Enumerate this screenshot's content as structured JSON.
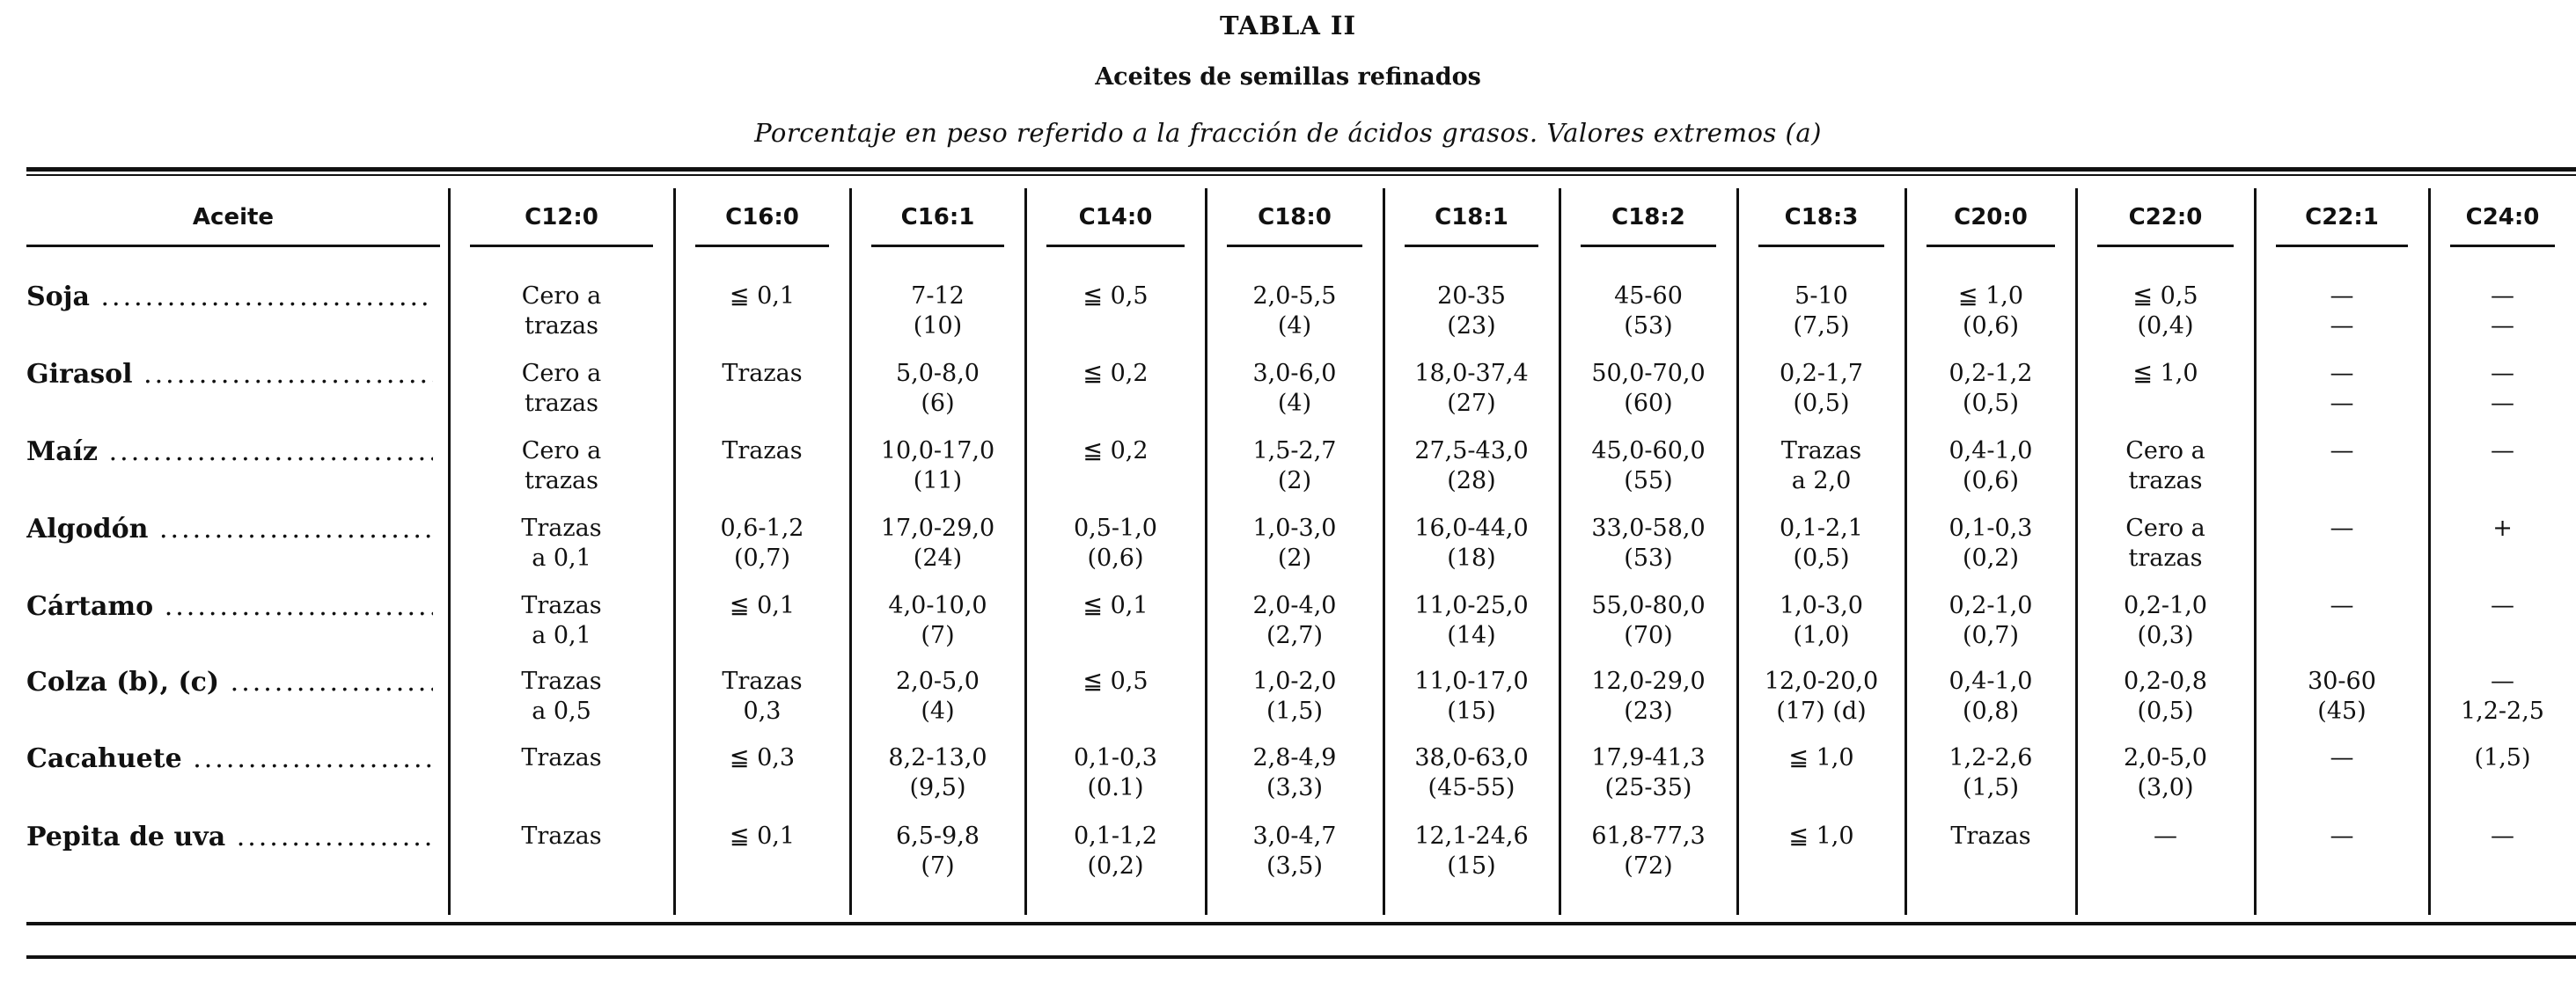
{
  "title": "TABLA II",
  "subtitle": "Aceites de semillas refinados",
  "caption": "Porcentaje en peso referido a la fracción de ácidos grasos. Valores extremos (a)",
  "columns": [
    "Aceite",
    "C12:0",
    "C16:0",
    "C16:1",
    "C14:0",
    "C18:0",
    "C18:1",
    "C18:2",
    "C18:3",
    "C20:0",
    "C22:0",
    "C22:1",
    "C24:0"
  ],
  "rows": [
    {
      "name": "Soja",
      "cells": [
        [
          "Cero a",
          "trazas"
        ],
        [
          "≦ 0,1",
          ""
        ],
        [
          "7-12",
          "(10)"
        ],
        [
          "≦ 0,5",
          ""
        ],
        [
          "2,0-5,5",
          "(4)"
        ],
        [
          "20-35",
          "(23)"
        ],
        [
          "45-60",
          "(53)"
        ],
        [
          "5-10",
          "(7,5)"
        ],
        [
          "≦ 1,0",
          "(0,6)"
        ],
        [
          "≦ 0,5",
          "(0,4)"
        ],
        [
          "—",
          "—"
        ],
        [
          "—",
          "—"
        ]
      ]
    },
    {
      "name": "Girasol",
      "cells": [
        [
          "Cero a",
          "trazas"
        ],
        [
          "Trazas",
          ""
        ],
        [
          "5,0-8,0",
          "(6)"
        ],
        [
          "≦ 0,2",
          ""
        ],
        [
          "3,0-6,0",
          "(4)"
        ],
        [
          "18,0-37,4",
          "(27)"
        ],
        [
          "50,0-70,0",
          "(60)"
        ],
        [
          "0,2-1,7",
          "(0,5)"
        ],
        [
          "0,2-1,2",
          "(0,5)"
        ],
        [
          "≦ 1,0",
          ""
        ],
        [
          "—",
          "—"
        ],
        [
          "—",
          "—"
        ]
      ]
    },
    {
      "name": "Maíz",
      "cells": [
        [
          "Cero a",
          "trazas"
        ],
        [
          "Trazas",
          ""
        ],
        [
          "10,0-17,0",
          "(11)"
        ],
        [
          "≦ 0,2",
          ""
        ],
        [
          "1,5-2,7",
          "(2)"
        ],
        [
          "27,5-43,0",
          "(28)"
        ],
        [
          "45,0-60,0",
          "(55)"
        ],
        [
          "Trazas",
          "a 2,0"
        ],
        [
          "0,4-1,0",
          "(0,6)"
        ],
        [
          "Cero a",
          "trazas"
        ],
        [
          "—",
          ""
        ],
        [
          "—",
          ""
        ]
      ]
    },
    {
      "name": "Algodón",
      "cells": [
        [
          "Trazas",
          "a 0,1"
        ],
        [
          "0,6-1,2",
          "(0,7)"
        ],
        [
          "17,0-29,0",
          "(24)"
        ],
        [
          "0,5-1,0",
          "(0,6)"
        ],
        [
          "1,0-3,0",
          "(2)"
        ],
        [
          "16,0-44,0",
          "(18)"
        ],
        [
          "33,0-58,0",
          "(53)"
        ],
        [
          "0,1-2,1",
          "(0,5)"
        ],
        [
          "0,1-0,3",
          "(0,2)"
        ],
        [
          "Cero a",
          "trazas"
        ],
        [
          "—",
          ""
        ],
        [
          "+",
          ""
        ]
      ]
    },
    {
      "name": "Cártamo",
      "cells": [
        [
          "Trazas",
          "a 0,1"
        ],
        [
          "≦ 0,1",
          ""
        ],
        [
          "4,0-10,0",
          "(7)"
        ],
        [
          "≦ 0,1",
          ""
        ],
        [
          "2,0-4,0",
          "(2,7)"
        ],
        [
          "11,0-25,0",
          "(14)"
        ],
        [
          "55,0-80,0",
          "(70)"
        ],
        [
          "1,0-3,0",
          "(1,0)"
        ],
        [
          "0,2-1,0",
          "(0,7)"
        ],
        [
          "0,2-1,0",
          "(0,3)"
        ],
        [
          "—",
          ""
        ],
        [
          "—",
          ""
        ]
      ]
    },
    {
      "name": "Colza (b), (c)",
      "cells": [
        [
          "Trazas",
          "a 0,5"
        ],
        [
          "Trazas",
          "0,3"
        ],
        [
          "2,0-5,0",
          "(4)"
        ],
        [
          "≦ 0,5",
          ""
        ],
        [
          "1,0-2,0",
          "(1,5)"
        ],
        [
          "11,0-17,0",
          "(15)"
        ],
        [
          "12,0-29,0",
          "(23)"
        ],
        [
          "12,0-20,0",
          "(17)   (d)"
        ],
        [
          "0,4-1,0",
          "(0,8)"
        ],
        [
          "0,2-0,8",
          "(0,5)"
        ],
        [
          "30-60",
          "(45)"
        ],
        [
          "—",
          "1,2-2,5"
        ]
      ]
    },
    {
      "name": "Cacahuete",
      "cells": [
        [
          "Trazas",
          ""
        ],
        [
          "≦ 0,3",
          ""
        ],
        [
          "8,2-13,0",
          "(9,5)"
        ],
        [
          "0,1-0,3",
          "(0.1)"
        ],
        [
          "2,8-4,9",
          "(3,3)"
        ],
        [
          "38,0-63,0",
          "(45-55)"
        ],
        [
          "17,9-41,3",
          "(25-35)"
        ],
        [
          "≦ 1,0",
          ""
        ],
        [
          "1,2-2,6",
          "(1,5)"
        ],
        [
          "2,0-5,0",
          "(3,0)"
        ],
        [
          "—",
          ""
        ],
        [
          "(1,5)",
          ""
        ]
      ]
    },
    {
      "name": "Pepita de uva",
      "cells": [
        [
          "Trazas",
          ""
        ],
        [
          "≦ 0,1",
          ""
        ],
        [
          "6,5-9,8",
          "(7)"
        ],
        [
          "0,1-1,2",
          "(0,2)"
        ],
        [
          "3,0-4,7",
          "(3,5)"
        ],
        [
          "12,1-24,6",
          "(15)"
        ],
        [
          "61,8-77,3",
          "(72)"
        ],
        [
          "≦ 1,0",
          ""
        ],
        [
          "Trazas",
          ""
        ],
        [
          "—",
          ""
        ],
        [
          "—",
          ""
        ],
        [
          "—",
          ""
        ]
      ]
    }
  ]
}
